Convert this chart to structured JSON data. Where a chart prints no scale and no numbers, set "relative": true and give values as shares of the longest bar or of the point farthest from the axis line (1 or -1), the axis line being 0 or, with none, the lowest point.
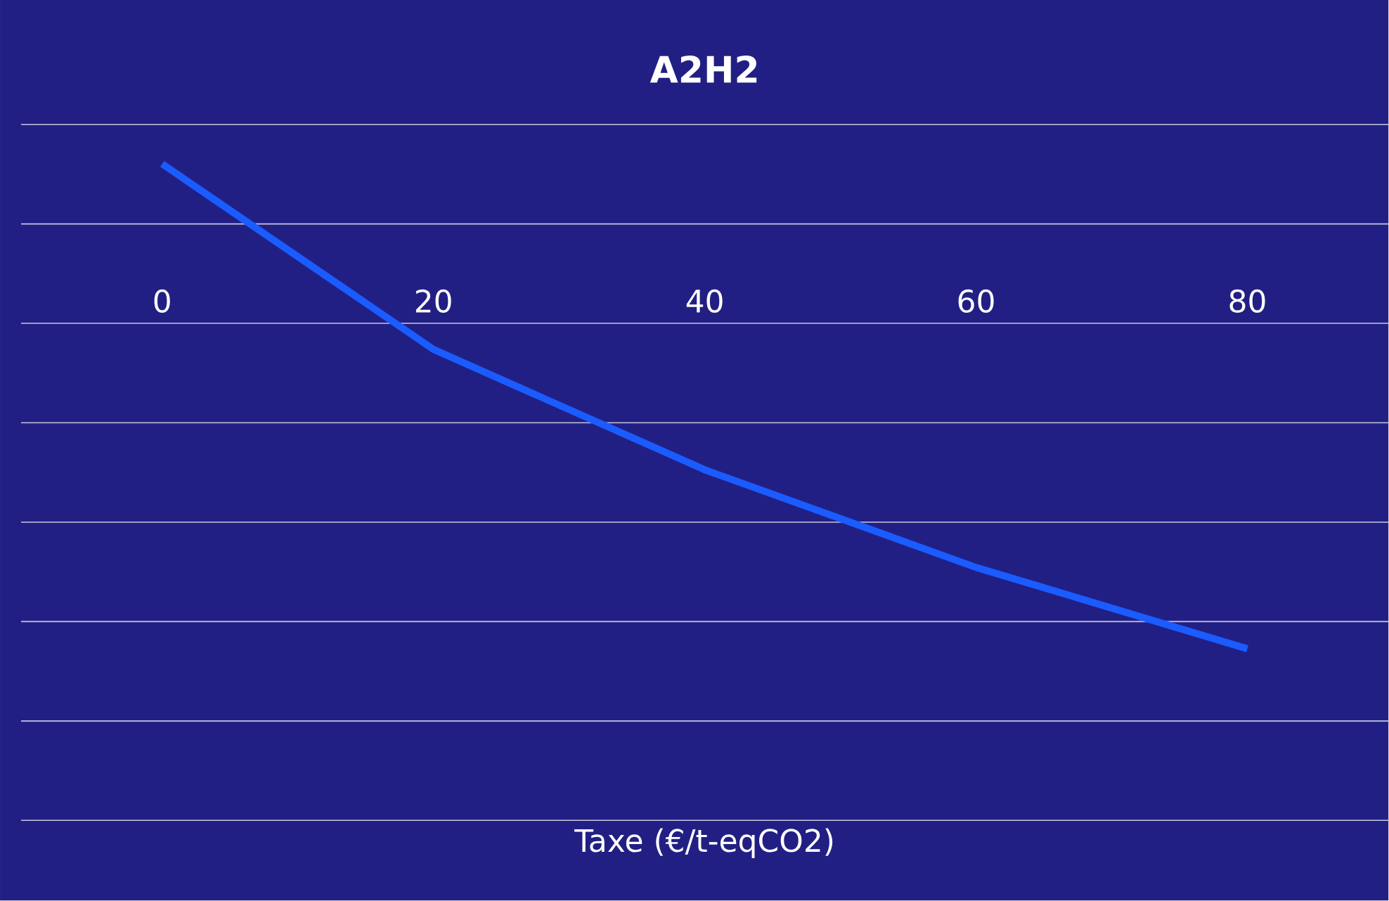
{
  "chart_data": {
    "type": "line",
    "title": "A2H2",
    "annotations": [
      "Taxe (€/t-eqCO2)"
    ],
    "categories": [
      "0",
      "20",
      "40",
      "60",
      "80"
    ],
    "series": [
      {
        "color": "#1a5cff",
        "values": [
          0.49,
          -0.08,
          -0.45,
          -0.75,
          -1
        ]
      }
    ],
    "relative": true,
    "grid": "y",
    "marker": "none",
    "line_style": "solid"
  }
}
